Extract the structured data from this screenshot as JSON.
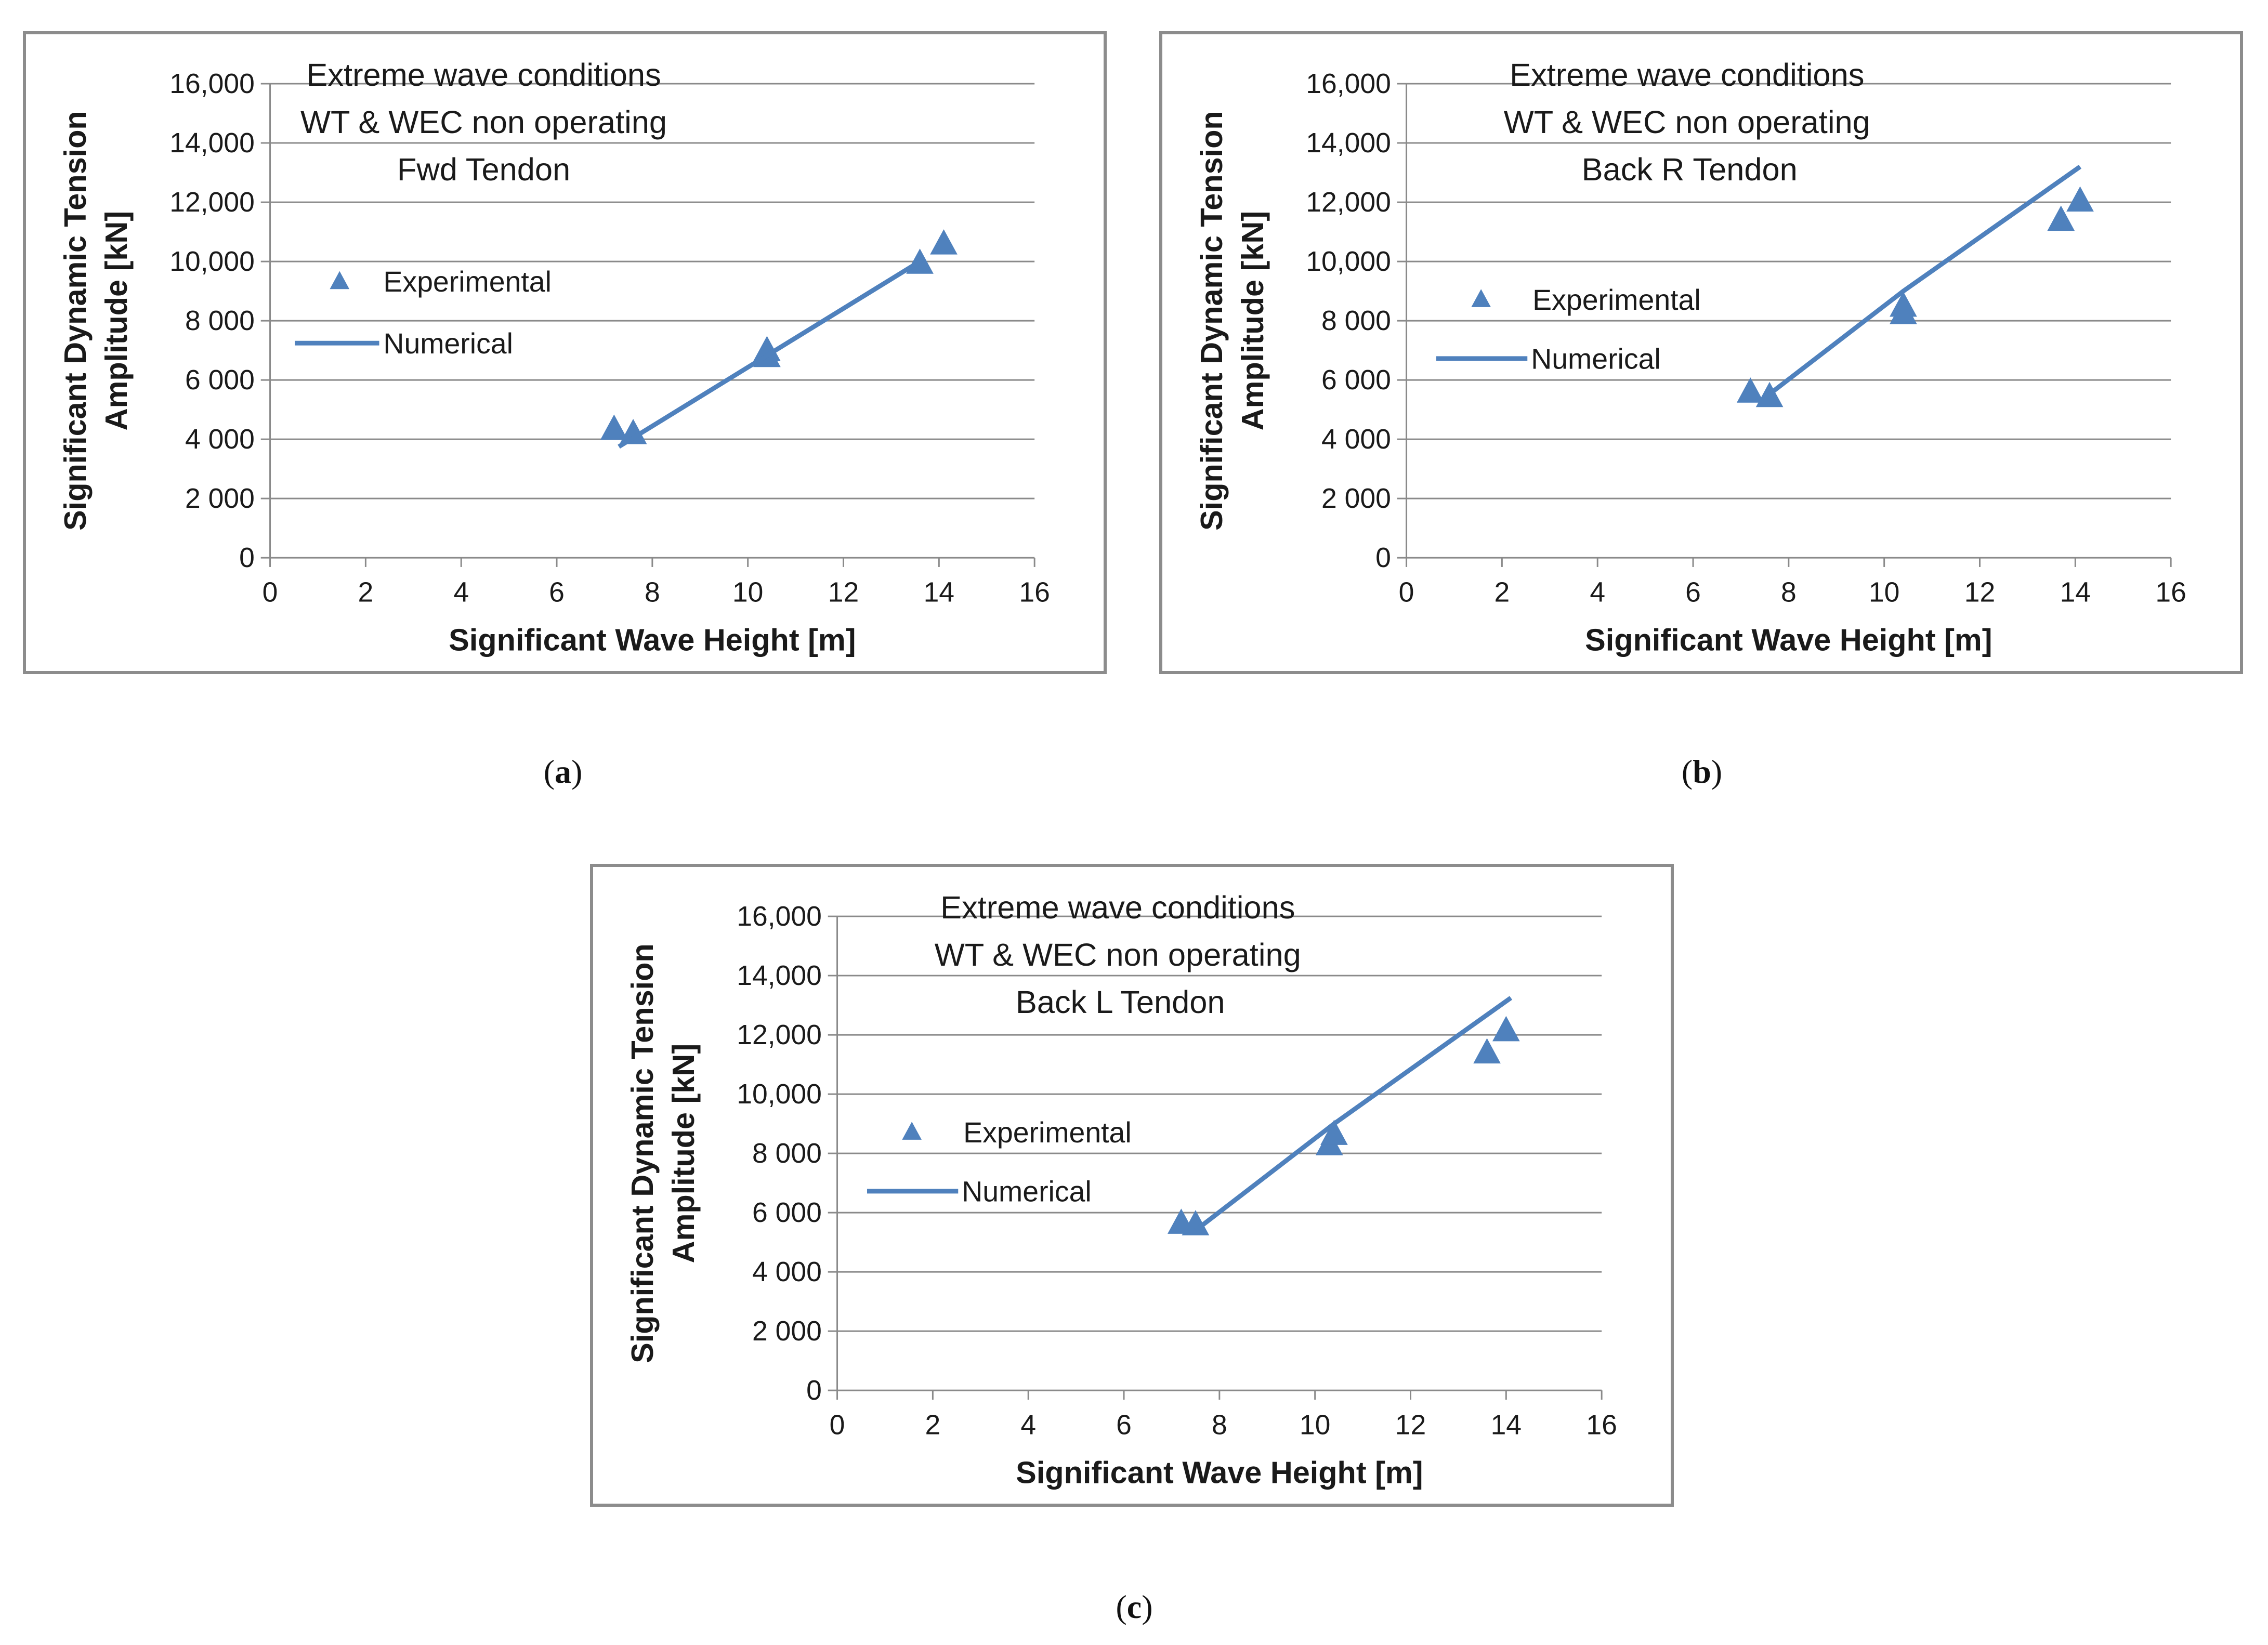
{
  "figure": {
    "captions": [
      "a",
      "b",
      "c"
    ]
  },
  "chart_data": [
    {
      "type": "scatter",
      "panel_label": "a",
      "title_lines": [
        "Extreme wave conditions",
        "WT & WEC non operating",
        "Fwd Tendon"
      ],
      "xlabel": "Significant Wave Height [m]",
      "ylabel_lines": [
        "Significant Dynamic Tension",
        "Amplitude [kN]"
      ],
      "xlim": [
        0,
        16
      ],
      "ylim": [
        0,
        16000
      ],
      "x_ticks": [
        0,
        2,
        4,
        6,
        8,
        10,
        12,
        14,
        16
      ],
      "x_tick_labels": [
        "0",
        "2",
        "4",
        "6",
        "8",
        "10",
        "12",
        "14",
        "16"
      ],
      "y_ticks": [
        0,
        2000,
        4000,
        6000,
        8000,
        10000,
        12000,
        14000,
        16000
      ],
      "y_tick_labels": [
        "0",
        "2 000",
        "4 000",
        "6 000",
        "8 000",
        "10,000",
        "12,000",
        "14,000",
        "16,000"
      ],
      "grid": "horizontal",
      "legend": [
        "Experimental",
        "Numerical"
      ],
      "color": "#4f81bd",
      "series": [
        {
          "name": "Experimental",
          "kind": "markers",
          "x": [
            7.2,
            7.6,
            10.4,
            10.4,
            13.6,
            14.1
          ],
          "y": [
            4350,
            4200,
            6800,
            7000,
            9950,
            10600
          ]
        },
        {
          "name": "Numerical",
          "kind": "line",
          "x": [
            7.3,
            13.7
          ],
          "y": [
            3750,
            10100
          ]
        }
      ]
    },
    {
      "type": "scatter",
      "panel_label": "b",
      "title_lines": [
        "Extreme wave conditions",
        "WT & WEC non operating",
        "Back R Tendon"
      ],
      "xlabel": "Significant Wave Height [m]",
      "ylabel_lines": [
        "Significant Dynamic Tension",
        "Amplitude [kN]"
      ],
      "xlim": [
        0,
        16
      ],
      "ylim": [
        0,
        16000
      ],
      "x_ticks": [
        0,
        2,
        4,
        6,
        8,
        10,
        12,
        14,
        16
      ],
      "x_tick_labels": [
        "0",
        "2",
        "4",
        "6",
        "8",
        "10",
        "12",
        "14",
        "16"
      ],
      "y_ticks": [
        0,
        2000,
        4000,
        6000,
        8000,
        10000,
        12000,
        14000,
        16000
      ],
      "y_tick_labels": [
        "0",
        "2 000",
        "4 000",
        "6 000",
        "8 000",
        "10,000",
        "12,000",
        "14,000",
        "16,000"
      ],
      "grid": "horizontal",
      "legend": [
        "Experimental",
        "Numerical"
      ],
      "color": "#4f81bd",
      "series": [
        {
          "name": "Experimental",
          "kind": "markers",
          "x": [
            7.2,
            7.6,
            10.4,
            10.4,
            13.7,
            14.1
          ],
          "y": [
            5600,
            5450,
            8250,
            8500,
            11400,
            12050
          ]
        },
        {
          "name": "Numerical",
          "kind": "line",
          "x": [
            7.5,
            10.4,
            14.1
          ],
          "y": [
            5400,
            9000,
            13200
          ]
        }
      ]
    },
    {
      "type": "scatter",
      "panel_label": "c",
      "title_lines": [
        "Extreme wave conditions",
        "WT & WEC non operating",
        "Back L Tendon"
      ],
      "xlabel": "Significant Wave Height [m]",
      "ylabel_lines": [
        "Significant Dynamic Tension",
        "Amplitude [kN]"
      ],
      "xlim": [
        0,
        16
      ],
      "ylim": [
        0,
        16000
      ],
      "x_ticks": [
        0,
        2,
        4,
        6,
        8,
        10,
        12,
        14,
        16
      ],
      "x_tick_labels": [
        "0",
        "2",
        "4",
        "6",
        "8",
        "10",
        "12",
        "14",
        "16"
      ],
      "y_ticks": [
        0,
        2000,
        4000,
        6000,
        8000,
        10000,
        12000,
        14000,
        16000
      ],
      "y_tick_labels": [
        "0",
        "2 000",
        "4 000",
        "6 000",
        "8 000",
        "10,000",
        "12,000",
        "14,000",
        "16,000"
      ],
      "grid": "horizontal",
      "legend": [
        "Experimental",
        "Numerical"
      ],
      "color": "#4f81bd",
      "series": [
        {
          "name": "Experimental",
          "kind": "markers",
          "x": [
            7.2,
            7.5,
            10.3,
            10.4,
            13.6,
            14.0
          ],
          "y": [
            5650,
            5600,
            8300,
            8650,
            11400,
            12150
          ]
        },
        {
          "name": "Numerical",
          "kind": "line",
          "x": [
            7.5,
            10.4,
            14.1
          ],
          "y": [
            5400,
            9000,
            13250
          ]
        }
      ]
    }
  ]
}
